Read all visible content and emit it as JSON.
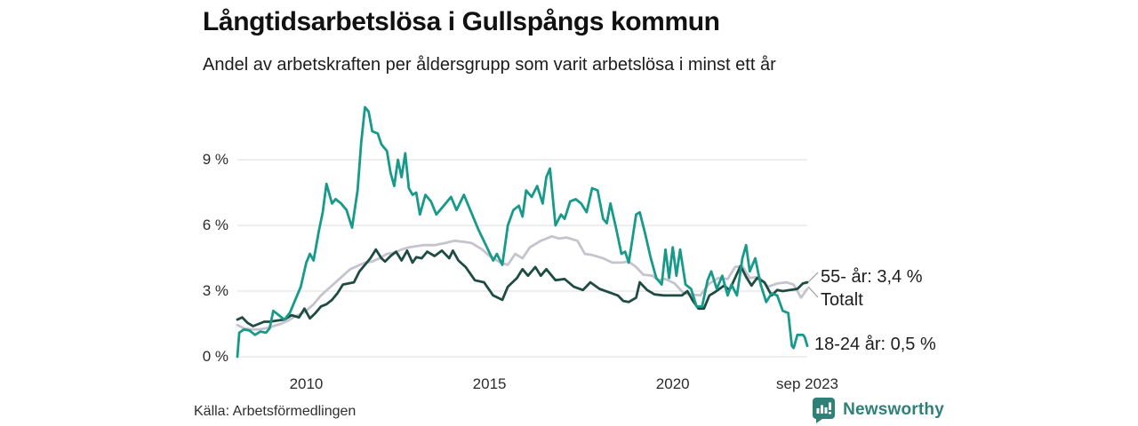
{
  "header": {
    "title": "Långtidsarbetslösa i Gullspångs kommun",
    "subtitle": "Andel av arbetskraften per åldersgrupp som varit arbetslösa i minst ett år"
  },
  "chart_data": {
    "type": "line",
    "title": "Långtidsarbetslösa i Gullspångs kommun",
    "subtitle": "Andel av arbetskraften per åldersgrupp som varit arbetslösa i minst ett år",
    "unit": "%",
    "grid": true,
    "legend_position": "end-labels-right",
    "x_domain": [
      2008.12,
      2023.67
    ],
    "ylim": [
      0,
      12
    ],
    "yticks": [
      {
        "v": 9,
        "label": "9 %"
      },
      {
        "v": 6,
        "label": "6 %"
      },
      {
        "v": 3,
        "label": "3 %"
      },
      {
        "v": 0,
        "label": "0 %"
      }
    ],
    "xticks": [
      {
        "x": 2010,
        "label": "2010"
      },
      {
        "x": 2015,
        "label": "2015"
      },
      {
        "x": 2020,
        "label": "2020"
      },
      {
        "x": 2023.67,
        "label": "sep 2023"
      }
    ],
    "series": [
      {
        "name": "18-24 år",
        "end_label": "18-24 år: 0,5 %",
        "last_value": 0.5,
        "color": "#179a8a",
        "points": [
          [
            2008.12,
            0.0
          ],
          [
            2008.17,
            1.1
          ],
          [
            2008.3,
            1.25
          ],
          [
            2008.45,
            1.2
          ],
          [
            2008.6,
            1.0
          ],
          [
            2008.75,
            1.15
          ],
          [
            2008.9,
            1.1
          ],
          [
            2009.0,
            1.3
          ],
          [
            2009.1,
            2.1
          ],
          [
            2009.25,
            1.9
          ],
          [
            2009.4,
            1.7
          ],
          [
            2009.55,
            2.0
          ],
          [
            2009.7,
            2.6
          ],
          [
            2009.85,
            3.2
          ],
          [
            2010.0,
            4.3
          ],
          [
            2010.1,
            4.7
          ],
          [
            2010.2,
            4.4
          ],
          [
            2010.35,
            5.8
          ],
          [
            2010.45,
            6.6
          ],
          [
            2010.55,
            7.9
          ],
          [
            2010.7,
            7.0
          ],
          [
            2010.8,
            7.2
          ],
          [
            2010.95,
            7.0
          ],
          [
            2011.1,
            6.7
          ],
          [
            2011.25,
            5.9
          ],
          [
            2011.4,
            7.6
          ],
          [
            2011.5,
            9.8
          ],
          [
            2011.6,
            11.4
          ],
          [
            2011.7,
            11.2
          ],
          [
            2011.8,
            10.3
          ],
          [
            2011.95,
            10.2
          ],
          [
            2012.05,
            9.7
          ],
          [
            2012.2,
            9.4
          ],
          [
            2012.3,
            8.4
          ],
          [
            2012.4,
            7.8
          ],
          [
            2012.5,
            9.0
          ],
          [
            2012.6,
            8.2
          ],
          [
            2012.7,
            9.3
          ],
          [
            2012.8,
            7.7
          ],
          [
            2012.9,
            7.4
          ],
          [
            2013.0,
            7.5
          ],
          [
            2013.1,
            6.5
          ],
          [
            2013.25,
            7.4
          ],
          [
            2013.4,
            7.1
          ],
          [
            2013.55,
            6.5
          ],
          [
            2013.75,
            6.9
          ],
          [
            2013.95,
            7.3
          ],
          [
            2014.1,
            6.7
          ],
          [
            2014.3,
            7.4
          ],
          [
            2014.5,
            6.6
          ],
          [
            2014.7,
            5.8
          ],
          [
            2014.9,
            5.1
          ],
          [
            2015.1,
            4.4
          ],
          [
            2015.2,
            4.7
          ],
          [
            2015.35,
            4.2
          ],
          [
            2015.5,
            6.0
          ],
          [
            2015.65,
            6.7
          ],
          [
            2015.8,
            6.9
          ],
          [
            2015.9,
            6.4
          ],
          [
            2016.0,
            7.6
          ],
          [
            2016.15,
            7.3
          ],
          [
            2016.3,
            7.8
          ],
          [
            2016.45,
            7.0
          ],
          [
            2016.55,
            8.2
          ],
          [
            2016.65,
            8.6
          ],
          [
            2016.8,
            6.0
          ],
          [
            2016.95,
            6.5
          ],
          [
            2017.05,
            6.3
          ],
          [
            2017.2,
            7.1
          ],
          [
            2017.35,
            7.2
          ],
          [
            2017.5,
            7.0
          ],
          [
            2017.65,
            6.6
          ],
          [
            2017.8,
            7.7
          ],
          [
            2017.95,
            7.6
          ],
          [
            2018.1,
            6.3
          ],
          [
            2018.2,
            6.1
          ],
          [
            2018.3,
            7.0
          ],
          [
            2018.45,
            5.9
          ],
          [
            2018.6,
            4.7
          ],
          [
            2018.7,
            4.8
          ],
          [
            2018.8,
            4.3
          ],
          [
            2018.9,
            5.4
          ],
          [
            2019.0,
            6.5
          ],
          [
            2019.1,
            6.6
          ],
          [
            2019.25,
            5.6
          ],
          [
            2019.4,
            4.5
          ],
          [
            2019.55,
            3.6
          ],
          [
            2019.7,
            3.3
          ],
          [
            2019.8,
            4.9
          ],
          [
            2019.9,
            3.6
          ],
          [
            2020.0,
            5.0
          ],
          [
            2020.1,
            3.7
          ],
          [
            2020.2,
            4.9
          ],
          [
            2020.35,
            3.3
          ],
          [
            2020.5,
            3.1
          ],
          [
            2020.65,
            2.3
          ],
          [
            2020.8,
            2.3
          ],
          [
            2020.95,
            3.5
          ],
          [
            2021.05,
            3.9
          ],
          [
            2021.2,
            3.1
          ],
          [
            2021.35,
            3.7
          ],
          [
            2021.5,
            2.8
          ],
          [
            2021.6,
            3.3
          ],
          [
            2021.75,
            2.8
          ],
          [
            2021.9,
            4.5
          ],
          [
            2022.0,
            5.1
          ],
          [
            2022.1,
            3.9
          ],
          [
            2022.25,
            4.5
          ],
          [
            2022.4,
            3.3
          ],
          [
            2022.55,
            2.5
          ],
          [
            2022.7,
            2.9
          ],
          [
            2022.85,
            2.8
          ],
          [
            2023.0,
            2.1
          ],
          [
            2023.15,
            2.0
          ],
          [
            2023.25,
            0.5
          ],
          [
            2023.3,
            0.4
          ],
          [
            2023.4,
            1.0
          ],
          [
            2023.55,
            1.0
          ],
          [
            2023.6,
            0.9
          ],
          [
            2023.67,
            0.5
          ]
        ]
      },
      {
        "name": "55- år",
        "end_label": "55- år: 3,4 %",
        "last_value": 3.4,
        "color": "#1f4c42",
        "points": [
          [
            2008.12,
            1.7
          ],
          [
            2008.25,
            1.8
          ],
          [
            2008.4,
            1.55
          ],
          [
            2008.55,
            1.4
          ],
          [
            2008.7,
            1.5
          ],
          [
            2008.85,
            1.6
          ],
          [
            2009.0,
            1.6
          ],
          [
            2009.2,
            1.65
          ],
          [
            2009.4,
            1.7
          ],
          [
            2009.6,
            1.9
          ],
          [
            2009.8,
            1.8
          ],
          [
            2009.95,
            2.2
          ],
          [
            2010.1,
            1.75
          ],
          [
            2010.25,
            2.0
          ],
          [
            2010.4,
            2.3
          ],
          [
            2010.55,
            2.4
          ],
          [
            2010.7,
            2.6
          ],
          [
            2010.85,
            2.9
          ],
          [
            2011.0,
            3.3
          ],
          [
            2011.15,
            3.35
          ],
          [
            2011.3,
            3.4
          ],
          [
            2011.45,
            3.9
          ],
          [
            2011.6,
            4.2
          ],
          [
            2011.75,
            4.5
          ],
          [
            2011.9,
            4.9
          ],
          [
            2012.05,
            4.5
          ],
          [
            2012.15,
            4.35
          ],
          [
            2012.3,
            4.6
          ],
          [
            2012.45,
            4.8
          ],
          [
            2012.6,
            4.4
          ],
          [
            2012.75,
            4.85
          ],
          [
            2012.9,
            4.3
          ],
          [
            2013.0,
            4.55
          ],
          [
            2013.15,
            4.5
          ],
          [
            2013.3,
            4.8
          ],
          [
            2013.5,
            4.6
          ],
          [
            2013.7,
            4.85
          ],
          [
            2013.9,
            4.5
          ],
          [
            2014.0,
            4.85
          ],
          [
            2014.15,
            4.4
          ],
          [
            2014.35,
            4.1
          ],
          [
            2014.6,
            3.5
          ],
          [
            2014.85,
            3.4
          ],
          [
            2015.1,
            2.8
          ],
          [
            2015.35,
            2.6
          ],
          [
            2015.5,
            3.2
          ],
          [
            2015.75,
            3.6
          ],
          [
            2015.9,
            4.0
          ],
          [
            2016.05,
            3.7
          ],
          [
            2016.25,
            4.1
          ],
          [
            2016.4,
            3.7
          ],
          [
            2016.55,
            4.0
          ],
          [
            2016.8,
            3.5
          ],
          [
            2017.05,
            3.55
          ],
          [
            2017.3,
            3.2
          ],
          [
            2017.55,
            3.05
          ],
          [
            2017.75,
            3.4
          ],
          [
            2018.0,
            3.1
          ],
          [
            2018.25,
            2.95
          ],
          [
            2018.5,
            2.8
          ],
          [
            2018.65,
            2.55
          ],
          [
            2018.8,
            2.5
          ],
          [
            2019.0,
            2.7
          ],
          [
            2019.1,
            3.4
          ],
          [
            2019.3,
            3.05
          ],
          [
            2019.5,
            2.85
          ],
          [
            2019.75,
            2.8
          ],
          [
            2020.0,
            2.8
          ],
          [
            2020.25,
            2.8
          ],
          [
            2020.4,
            3.0
          ],
          [
            2020.55,
            2.55
          ],
          [
            2020.7,
            2.2
          ],
          [
            2020.85,
            2.2
          ],
          [
            2021.0,
            2.8
          ],
          [
            2021.15,
            2.95
          ],
          [
            2021.4,
            3.25
          ],
          [
            2021.55,
            3.05
          ],
          [
            2021.7,
            3.6
          ],
          [
            2021.85,
            4.15
          ],
          [
            2022.0,
            3.65
          ],
          [
            2022.15,
            3.25
          ],
          [
            2022.3,
            3.6
          ],
          [
            2022.5,
            3.4
          ],
          [
            2022.7,
            2.8
          ],
          [
            2022.85,
            3.05
          ],
          [
            2023.0,
            3.0
          ],
          [
            2023.2,
            3.05
          ],
          [
            2023.4,
            3.1
          ],
          [
            2023.55,
            3.35
          ],
          [
            2023.67,
            3.4
          ]
        ]
      },
      {
        "name": "Totalt",
        "end_label": "Totalt",
        "color": "#c6c3ce",
        "points": [
          [
            2008.12,
            1.45
          ],
          [
            2008.3,
            1.3
          ],
          [
            2008.5,
            1.25
          ],
          [
            2008.7,
            1.25
          ],
          [
            2008.9,
            1.3
          ],
          [
            2009.1,
            1.4
          ],
          [
            2009.3,
            1.5
          ],
          [
            2009.5,
            1.65
          ],
          [
            2009.7,
            1.85
          ],
          [
            2009.9,
            2.0
          ],
          [
            2010.0,
            2.1
          ],
          [
            2010.2,
            2.4
          ],
          [
            2010.4,
            2.8
          ],
          [
            2010.6,
            3.1
          ],
          [
            2010.8,
            3.4
          ],
          [
            2011.0,
            3.7
          ],
          [
            2011.2,
            4.0
          ],
          [
            2011.4,
            4.15
          ],
          [
            2011.6,
            4.3
          ],
          [
            2011.8,
            4.35
          ],
          [
            2012.0,
            4.5
          ],
          [
            2012.2,
            4.7
          ],
          [
            2012.4,
            4.75
          ],
          [
            2012.6,
            4.9
          ],
          [
            2012.8,
            5.0
          ],
          [
            2013.0,
            5.05
          ],
          [
            2013.2,
            5.1
          ],
          [
            2013.5,
            5.1
          ],
          [
            2013.8,
            5.2
          ],
          [
            2014.05,
            5.3
          ],
          [
            2014.3,
            5.25
          ],
          [
            2014.5,
            5.2
          ],
          [
            2014.8,
            4.9
          ],
          [
            2015.0,
            4.6
          ],
          [
            2015.3,
            4.3
          ],
          [
            2015.5,
            4.2
          ],
          [
            2015.7,
            4.7
          ],
          [
            2015.9,
            4.5
          ],
          [
            2016.1,
            5.0
          ],
          [
            2016.4,
            5.3
          ],
          [
            2016.7,
            5.5
          ],
          [
            2016.9,
            5.4
          ],
          [
            2017.1,
            5.45
          ],
          [
            2017.4,
            5.3
          ],
          [
            2017.6,
            4.7
          ],
          [
            2017.8,
            4.65
          ],
          [
            2018.1,
            4.5
          ],
          [
            2018.35,
            4.3
          ],
          [
            2018.6,
            4.3
          ],
          [
            2018.8,
            4.35
          ],
          [
            2019.0,
            4.1
          ],
          [
            2019.2,
            3.75
          ],
          [
            2019.45,
            3.7
          ],
          [
            2019.6,
            3.5
          ],
          [
            2019.8,
            3.55
          ],
          [
            2020.05,
            3.35
          ],
          [
            2020.3,
            2.9
          ],
          [
            2020.5,
            2.85
          ],
          [
            2020.75,
            2.8
          ],
          [
            2021.0,
            3.35
          ],
          [
            2021.25,
            3.6
          ],
          [
            2021.5,
            3.55
          ],
          [
            2021.7,
            4.1
          ],
          [
            2021.9,
            4.15
          ],
          [
            2022.1,
            3.6
          ],
          [
            2022.35,
            3.65
          ],
          [
            2022.6,
            3.2
          ],
          [
            2022.85,
            3.35
          ],
          [
            2023.1,
            3.4
          ],
          [
            2023.3,
            3.3
          ],
          [
            2023.5,
            2.7
          ],
          [
            2023.67,
            3.1
          ]
        ]
      }
    ]
  },
  "footer": {
    "source": "Källa: Arbetsförmedlingen",
    "brand": "Newsworthy"
  },
  "icons": {
    "brand_icon": "newsworthy-bar-chart-bubble-icon"
  },
  "colors": {
    "accent_teal": "#179a8a",
    "dark_green": "#1f4c42",
    "total_gray": "#c6c3ce",
    "grid": "#dcdcdc",
    "connector": "#9a9a9a",
    "brand_teal": "#2f8076",
    "text": "#1c1c1c"
  }
}
